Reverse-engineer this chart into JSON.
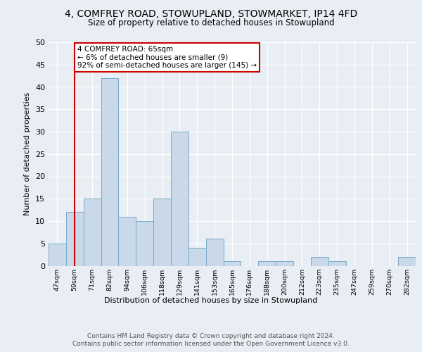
{
  "title1": "4, COMFREY ROAD, STOWUPLAND, STOWMARKET, IP14 4FD",
  "title2": "Size of property relative to detached houses in Stowupland",
  "xlabel": "Distribution of detached houses by size in Stowupland",
  "ylabel": "Number of detached properties",
  "bin_labels": [
    "47sqm",
    "59sqm",
    "71sqm",
    "82sqm",
    "94sqm",
    "106sqm",
    "118sqm",
    "129sqm",
    "141sqm",
    "153sqm",
    "165sqm",
    "176sqm",
    "188sqm",
    "200sqm",
    "212sqm",
    "223sqm",
    "235sqm",
    "247sqm",
    "259sqm",
    "270sqm",
    "282sqm"
  ],
  "bar_values": [
    5,
    12,
    15,
    42,
    11,
    10,
    15,
    30,
    4,
    6,
    1,
    0,
    1,
    1,
    0,
    2,
    1,
    0,
    0,
    0,
    2
  ],
  "bar_color": "#c9d9ea",
  "bar_edge_color": "#7aaac8",
  "bin_starts": [
    47,
    59,
    71,
    82,
    94,
    106,
    118,
    129,
    141,
    153,
    165,
    176,
    188,
    200,
    212,
    223,
    235,
    247,
    259,
    270,
    282
  ],
  "property_sqm": 65,
  "property_line_label": "4 COMFREY ROAD: 65sqm",
  "annotation_line1": "← 6% of detached houses are smaller (9)",
  "annotation_line2": "92% of semi-detached houses are larger (145) →",
  "annotation_box_facecolor": "#ffffff",
  "annotation_box_edgecolor": "#cc0000",
  "line_color": "#cc0000",
  "ylim": [
    0,
    50
  ],
  "yticks": [
    0,
    5,
    10,
    15,
    20,
    25,
    30,
    35,
    40,
    45,
    50
  ],
  "footer_line1": "Contains HM Land Registry data © Crown copyright and database right 2024.",
  "footer_line2": "Contains public sector information licensed under the Open Government Licence v3.0.",
  "background_color": "#e8eef4",
  "plot_background_color": "#e8eef4"
}
